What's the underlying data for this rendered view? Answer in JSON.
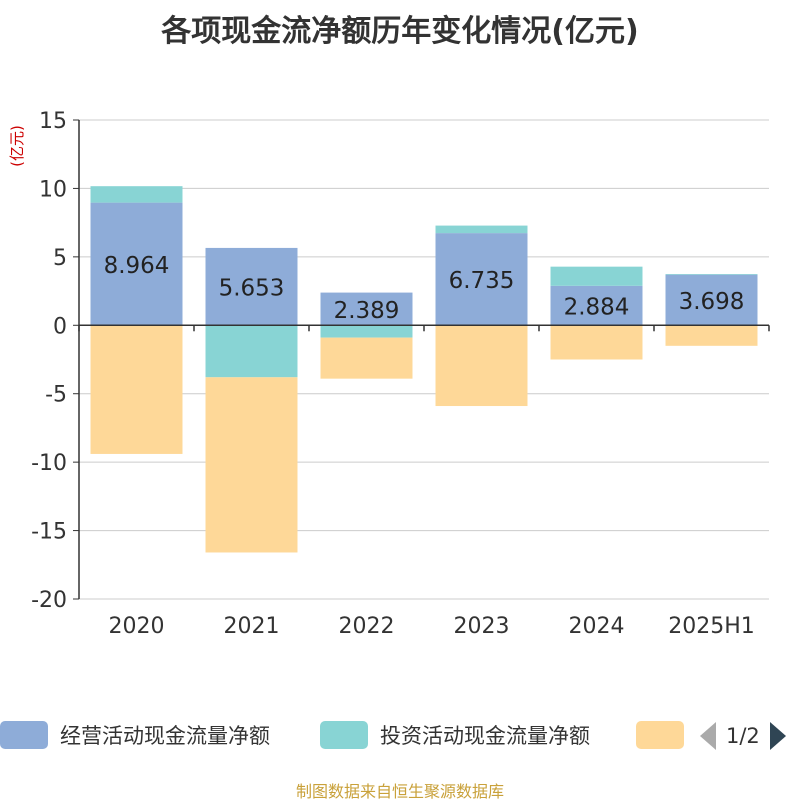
{
  "title": "各项现金流净额历年变化情况(亿元)",
  "source": "制图数据来自恒生聚源数据库",
  "colors": {
    "operating": "#8eacd8",
    "investing": "#88d4d4",
    "financing": "#fed898",
    "unit": "#cc0000"
  },
  "legend": {
    "items": [
      {
        "label": "经营活动现金流量净额",
        "color": "#8eacd8"
      },
      {
        "label": "投资活动现金流量净额",
        "color": "#88d4d4"
      },
      {
        "label": "",
        "color": "#fed898"
      }
    ],
    "page": "1/2",
    "prev_icon": "triangle-left-icon",
    "next_icon": "triangle-right-icon"
  },
  "chart_data": {
    "type": "bar",
    "stacked": true,
    "categories": [
      "2020",
      "2021",
      "2022",
      "2023",
      "2024",
      "2025H1"
    ],
    "series": [
      {
        "name": "经营活动现金流量净额",
        "values": [
          8.964,
          5.653,
          2.389,
          6.735,
          2.884,
          3.698
        ]
      },
      {
        "name": "投资活动现金流量净额",
        "values": [
          1.2,
          -3.8,
          -0.9,
          0.55,
          1.4,
          0.05
        ]
      },
      {
        "name": "",
        "values": [
          -9.4,
          -12.8,
          -3.0,
          -5.9,
          -2.5,
          -1.5
        ]
      }
    ],
    "data_labels": [
      "8.964",
      "5.653",
      "2.389",
      "6.735",
      "2.884",
      "3.698"
    ],
    "ylabel": "(亿元)",
    "ylim": [
      -20,
      15
    ],
    "yticks": [
      15,
      10,
      5,
      0,
      -5,
      -10,
      -15,
      -20
    ],
    "grid": true
  }
}
